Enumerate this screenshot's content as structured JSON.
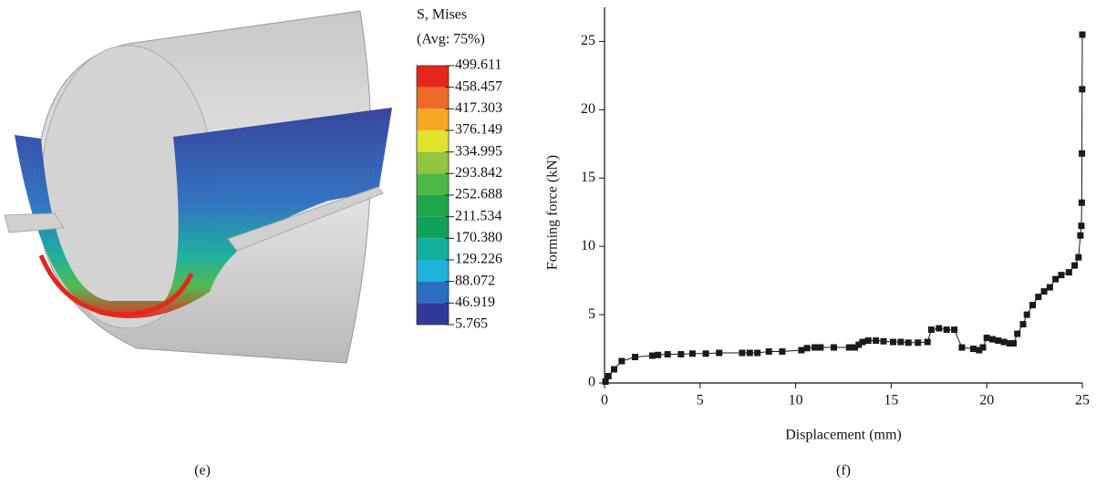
{
  "chart_data": [
    {
      "type": "colorbar",
      "title": "S, Mises",
      "subtitle": "(Avg: 75%)",
      "caption": "(e)",
      "levels": [
        499.611,
        458.457,
        417.303,
        376.149,
        334.995,
        293.842,
        252.688,
        211.534,
        {
          "value": 170.38,
          "label": "170.380"
        },
        129.226,
        88.072,
        46.919,
        5.765
      ],
      "colors": [
        "#e5261d",
        "#ef6a27",
        "#f4a824",
        "#e2e32b",
        "#93c63f",
        "#4db848",
        "#1fa64a",
        "#0fa25b",
        "#14ae9c",
        "#1cb4d8",
        "#2b6ec0",
        "#30399a"
      ]
    },
    {
      "type": "line",
      "caption": "(f)",
      "xlabel": "Displacement (mm)",
      "ylabel": "Forming force (kN)",
      "color": "#1a1a1a",
      "x": [
        0.05,
        0.2,
        0.5,
        0.9,
        1.6,
        2.5,
        2.8,
        3.3,
        4.0,
        4.6,
        5.3,
        6.0,
        7.2,
        7.6,
        8.0,
        8.6,
        9.3,
        10.3,
        10.6,
        11.0,
        11.3,
        12.0,
        12.8,
        13.1,
        13.3,
        13.5,
        13.8,
        14.2,
        14.6,
        15.1,
        15.5,
        15.9,
        16.4,
        16.9,
        17.1,
        17.5,
        17.9,
        18.3,
        18.7,
        19.3,
        19.6,
        19.8,
        20.0,
        20.3,
        20.6,
        20.9,
        21.2,
        21.4,
        21.6,
        21.9,
        22.1,
        22.4,
        22.7,
        23.0,
        23.3,
        23.6,
        23.9,
        24.3,
        24.6,
        24.8,
        24.9,
        24.95,
        24.97,
        24.98,
        24.99,
        25.0
      ],
      "values": [
        0.1,
        0.5,
        1.0,
        1.6,
        1.9,
        2.0,
        2.05,
        2.1,
        2.1,
        2.15,
        2.15,
        2.2,
        2.2,
        2.2,
        2.2,
        2.3,
        2.3,
        2.4,
        2.55,
        2.6,
        2.6,
        2.6,
        2.6,
        2.6,
        2.8,
        3.0,
        3.1,
        3.1,
        3.05,
        3.0,
        3.0,
        2.95,
        2.95,
        3.0,
        3.9,
        4.0,
        3.9,
        3.9,
        2.6,
        2.5,
        2.4,
        2.6,
        3.3,
        3.2,
        3.1,
        3.0,
        2.9,
        2.9,
        3.6,
        4.3,
        5.0,
        5.7,
        6.3,
        6.7,
        7.0,
        7.6,
        7.9,
        8.1,
        8.6,
        9.2,
        10.8,
        11.5,
        13.2,
        16.8,
        21.5,
        25.5
      ],
      "xlim": [
        0,
        25
      ],
      "ylim": [
        0,
        27.5
      ],
      "xticks": [
        0,
        5,
        10,
        15,
        20,
        25
      ],
      "yticks": [
        0,
        5,
        10,
        15,
        20,
        25
      ]
    }
  ]
}
